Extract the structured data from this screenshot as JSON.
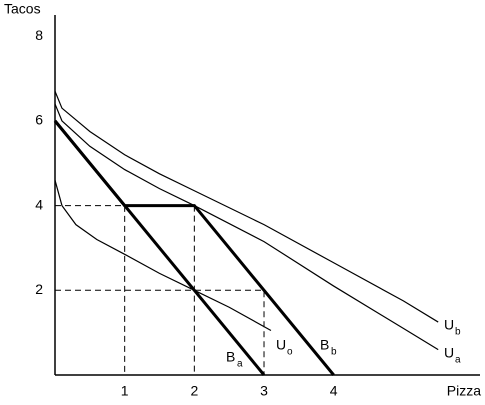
{
  "chart_data": {
    "type": "line",
    "y_label": "Tacos",
    "x_label": "Pizza",
    "xlim": [
      0,
      6.1
    ],
    "ylim": [
      0,
      8.5
    ],
    "xticks": [
      1,
      2,
      3,
      4
    ],
    "yticks": [
      2,
      4,
      6,
      8
    ],
    "color": "#000000",
    "series": [
      {
        "name": "B",
        "subscript": "a",
        "bold": true,
        "x": [
          0,
          3
        ],
        "values": [
          6,
          0
        ]
      },
      {
        "name": "B",
        "subscript": "b",
        "bold": true,
        "x": [
          0,
          1,
          2,
          4
        ],
        "values": [
          6,
          4,
          4,
          0
        ]
      },
      {
        "name": "U",
        "subscript": "o",
        "x": [
          0,
          0.1,
          0.3,
          0.6,
          1,
          1.5,
          2,
          2.5,
          3.1
        ],
        "values": [
          4.6,
          4.0,
          3.55,
          3.2,
          2.85,
          2.4,
          2.0,
          1.6,
          1.05
        ]
      },
      {
        "name": "U",
        "subscript": "a",
        "x": [
          0,
          0.1,
          0.5,
          1,
          1.5,
          2,
          3,
          4,
          5,
          5.5
        ],
        "values": [
          6.4,
          6.0,
          5.4,
          4.85,
          4.4,
          4.0,
          3.15,
          2.1,
          1.1,
          0.6
        ]
      },
      {
        "name": "U",
        "subscript": "b",
        "x": [
          0,
          0.1,
          0.5,
          1,
          1.5,
          2,
          3,
          4,
          5,
          5.5
        ],
        "values": [
          6.7,
          6.3,
          5.75,
          5.2,
          4.75,
          4.35,
          3.55,
          2.65,
          1.75,
          1.25
        ]
      },
      {
        "dashed": true,
        "x": [
          0,
          1,
          1
        ],
        "values": [
          4,
          4,
          0
        ]
      },
      {
        "dashed": true,
        "x": [
          2,
          2
        ],
        "values": [
          4,
          0
        ]
      },
      {
        "dashed": true,
        "x": [
          0,
          3,
          3
        ],
        "values": [
          2,
          2,
          0
        ]
      }
    ]
  }
}
